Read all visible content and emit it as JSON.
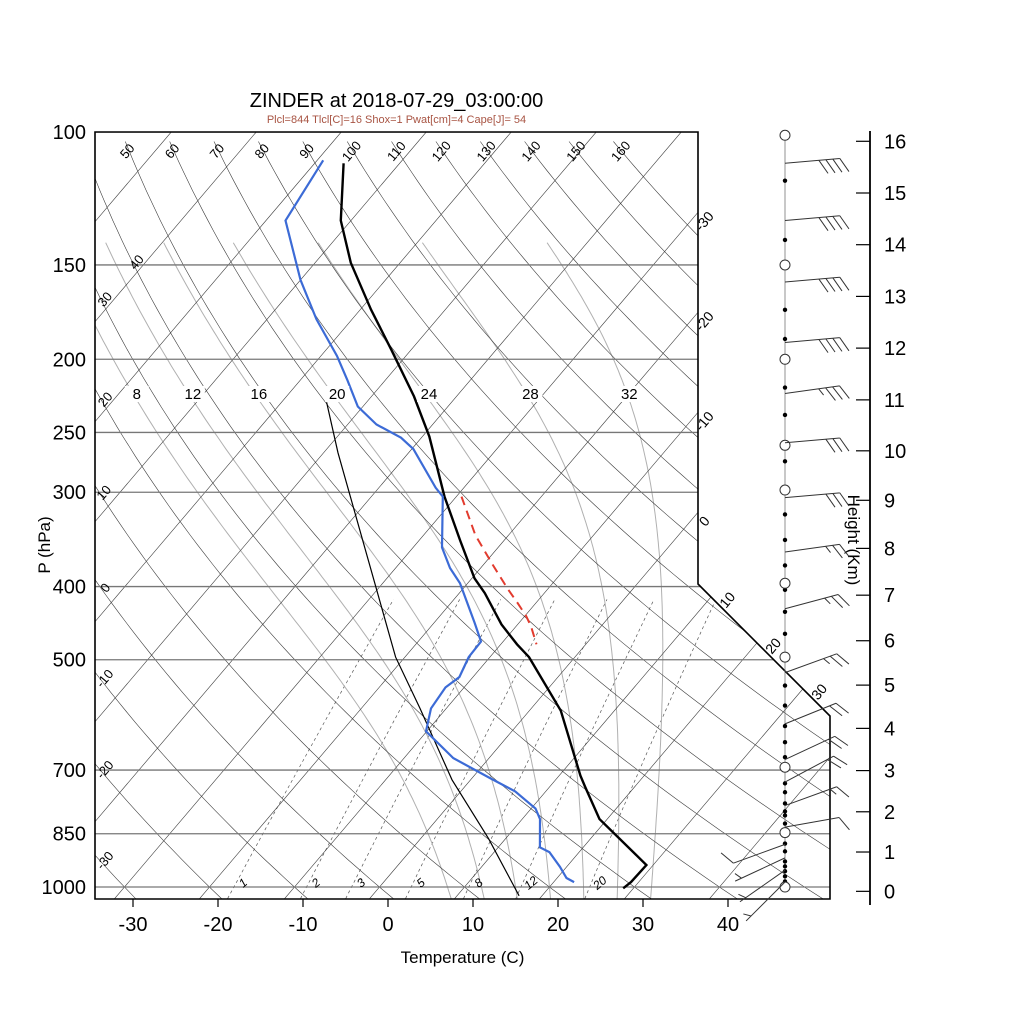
{
  "header": {
    "title": "ZINDER at 2018-07-29_03:00:00",
    "subtitle": "Plcl=844 Tlcl[C]=16 Shox=1 Pwat[cm]=4 Cape[J]= 54"
  },
  "colors": {
    "temperature_line": "#000000",
    "dewpoint_line": "#3c6bd6",
    "parcel_line": "#000000",
    "cape_segment": "#e23b2e",
    "subtitle_text": "#a85443",
    "isotherm": "#3c3c3c",
    "dry_adiabat": "#3c3c3c",
    "moist_adiabat": "#b0b0b0",
    "mixing_ratio": "#555555",
    "pressure_line": "#777777",
    "border": "#000000",
    "wind": "#333333"
  },
  "axes": {
    "pressure": {
      "label": "P (hPa)",
      "ticks": [
        100,
        150,
        200,
        250,
        300,
        400,
        500,
        700,
        850,
        1000
      ]
    },
    "temperature": {
      "label": "Temperature (C)",
      "ticks": [
        -30,
        -20,
        -10,
        0,
        10,
        20,
        30,
        40
      ]
    },
    "height": {
      "label": "Height (Km)",
      "ticks": [
        0,
        1,
        2,
        3,
        4,
        5,
        6,
        7,
        8,
        9,
        10,
        11,
        12,
        13,
        14,
        15,
        16
      ]
    }
  },
  "chart_data": {
    "type": "skewt_sounding",
    "station": "ZINDER",
    "datetime": "2018-07-29_03:00:00",
    "parameters": {
      "Plcl": 844,
      "Tlcl_C": 16,
      "Shox": 1,
      "Pwat_cm": 4,
      "Cape_J": 54
    },
    "background": {
      "isotherms_C": {
        "start": -110,
        "end": 40,
        "step": 10,
        "right_edge_labels": [
          -30,
          -20,
          -10,
          0
        ],
        "diagonal_edge_labels": [
          10,
          20,
          30
        ]
      },
      "dry_adiabats_C": {
        "start": -30,
        "end": 160,
        "step": 10,
        "top_labels": [
          50,
          60,
          70,
          80,
          90,
          100,
          110,
          120,
          130,
          140,
          150,
          160
        ],
        "left_labels": [
          40,
          30,
          20,
          10,
          0,
          -10,
          -20,
          -30
        ]
      },
      "moist_adiabats_C": [
        8,
        12,
        16,
        20,
        24,
        28,
        32
      ],
      "mixing_ratio_gkg": [
        1,
        2,
        3,
        5,
        8,
        12,
        20
      ]
    },
    "series": {
      "temperature_pT": [
        [
          110,
          -76.6
        ],
        [
          131,
          -71.2
        ],
        [
          149,
          -65.8
        ],
        [
          172,
          -58.7
        ],
        [
          194,
          -52.4
        ],
        [
          224,
          -45.0
        ],
        [
          253,
          -39.2
        ],
        [
          304,
          -31.4
        ],
        [
          348,
          -25.1
        ],
        [
          390,
          -19.7
        ],
        [
          408,
          -17.0
        ],
        [
          449,
          -11.9
        ],
        [
          477,
          -8.1
        ],
        [
          496,
          -5.4
        ],
        [
          584,
          3.7
        ],
        [
          712,
          12.5
        ],
        [
          737,
          14.2
        ],
        [
          813,
          19.1
        ],
        [
          935,
          29.2
        ],
        [
          985,
          29.1
        ],
        [
          1004,
          28.8
        ]
      ],
      "dewpoint_pT": [
        [
          109,
          -79.3
        ],
        [
          131,
          -77.7
        ],
        [
          157,
          -70.0
        ],
        [
          177,
          -64.2
        ],
        [
          198,
          -58.1
        ],
        [
          213,
          -54.5
        ],
        [
          231,
          -50.6
        ],
        [
          244,
          -46.6
        ],
        [
          254,
          -42.4
        ],
        [
          263,
          -39.8
        ],
        [
          296,
          -33.3
        ],
        [
          304,
          -31.6
        ],
        [
          355,
          -26.6
        ],
        [
          378,
          -23.6
        ],
        [
          396,
          -20.9
        ],
        [
          447,
          -15.2
        ],
        [
          473,
          -12.6
        ],
        [
          496,
          -12.5
        ],
        [
          527,
          -11.6
        ],
        [
          544,
          -12.2
        ],
        [
          580,
          -11.8
        ],
        [
          622,
          -10.1
        ],
        [
          675,
          -4.2
        ],
        [
          718,
          2.2
        ],
        [
          747,
          6.4
        ],
        [
          787,
          10.5
        ],
        [
          813,
          12.1
        ],
        [
          886,
          14.9
        ],
        [
          899,
          16.5
        ],
        [
          940,
          19.2
        ],
        [
          973,
          21.1
        ],
        [
          985,
          22.4
        ]
      ],
      "parcel_pT": [
        [
          228,
          -54.7
        ],
        [
          266,
          -48.3
        ],
        [
          399,
          -30.6
        ],
        [
          496,
          -21.1
        ],
        [
          580,
          -13.1
        ],
        [
          721,
          -2.2
        ],
        [
          863,
          8.0
        ],
        [
          1027,
          17.3
        ]
      ],
      "cape_segment_pT": [
        [
          304,
          -29.4
        ],
        [
          342,
          -23.9
        ],
        [
          375,
          -18.8
        ],
        [
          403,
          -14.7
        ],
        [
          421,
          -12.1
        ],
        [
          438,
          -9.8
        ],
        [
          452,
          -8.2
        ],
        [
          477,
          -5.8
        ]
      ]
    },
    "winds": {
      "barbs_p_spd_dir": [
        [
          110,
          40,
          85
        ],
        [
          131,
          40,
          85
        ],
        [
          158,
          40,
          85
        ],
        [
          190,
          40,
          85
        ],
        [
          222,
          35,
          82
        ],
        [
          258,
          30,
          85
        ],
        [
          305,
          30,
          85
        ],
        [
          360,
          25,
          82
        ],
        [
          428,
          25,
          75
        ],
        [
          520,
          25,
          70
        ],
        [
          608,
          20,
          68
        ],
        [
          678,
          20,
          65
        ],
        [
          726,
          20,
          62
        ],
        [
          780,
          15,
          70
        ],
        [
          833,
          10,
          80
        ],
        [
          878,
          10,
          250
        ],
        [
          915,
          8,
          245
        ],
        [
          950,
          8,
          235
        ],
        [
          985,
          5,
          225
        ]
      ],
      "dots_p": [
        116,
        139,
        172,
        188,
        218,
        237,
        273,
        321,
        347,
        375,
        404,
        432,
        462,
        500,
        541,
        575,
        612,
        643,
        673,
        700,
        729,
        749,
        775,
        794,
        804,
        824,
        876,
        897,
        925,
        939,
        953,
        968,
        983,
        1004
      ],
      "circles_p": [
        101,
        150,
        200,
        260,
        298,
        396,
        496,
        694,
        847,
        1000
      ]
    }
  }
}
